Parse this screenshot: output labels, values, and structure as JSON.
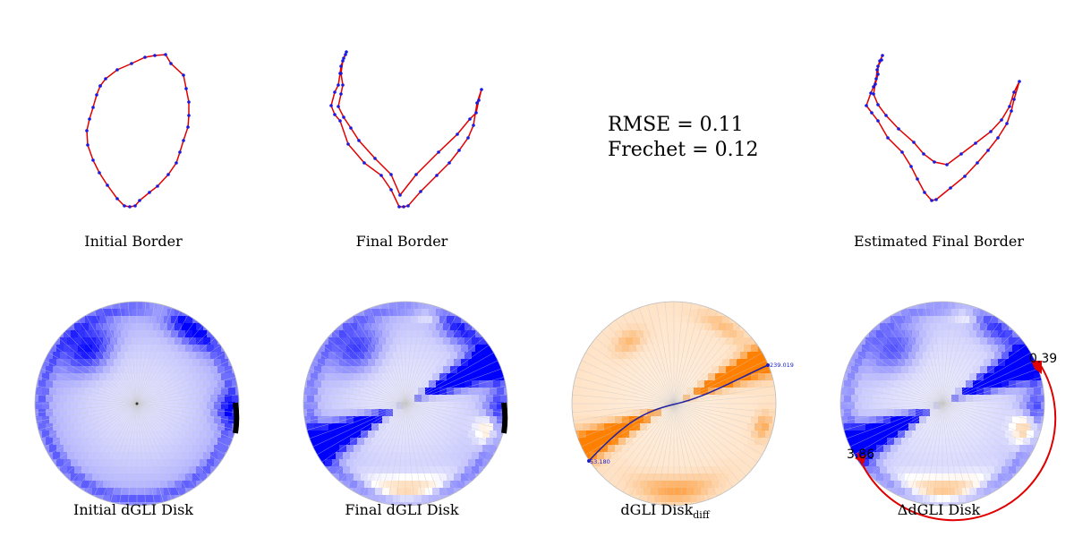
{
  "panels": {
    "initial_border": {
      "label": "Initial Border"
    },
    "final_border": {
      "label": "Final Border"
    },
    "estimated_final_border": {
      "label": "Estimated Final Border"
    },
    "initial_disk": {
      "label": "Initial dGLI Disk"
    },
    "final_disk": {
      "label": "Final dGLI Disk"
    },
    "diff_disk": {
      "label": "dGLI Disk",
      "label_sub": "diff",
      "start_value": "53.180",
      "end_value": "239.019"
    },
    "delta_disk": {
      "label": "ΔdGLI Disk",
      "marker_top": "0.39",
      "marker_bottom": "3.86"
    }
  },
  "metrics": {
    "rmse": "RMSE = 0.11",
    "frechet": "Frechet = 0.12"
  },
  "colors": {
    "curve": "#e00000",
    "points": "#1a1ae0",
    "positive": "#ff8000",
    "negative": "#0000ff",
    "arc": "#e00000"
  }
}
